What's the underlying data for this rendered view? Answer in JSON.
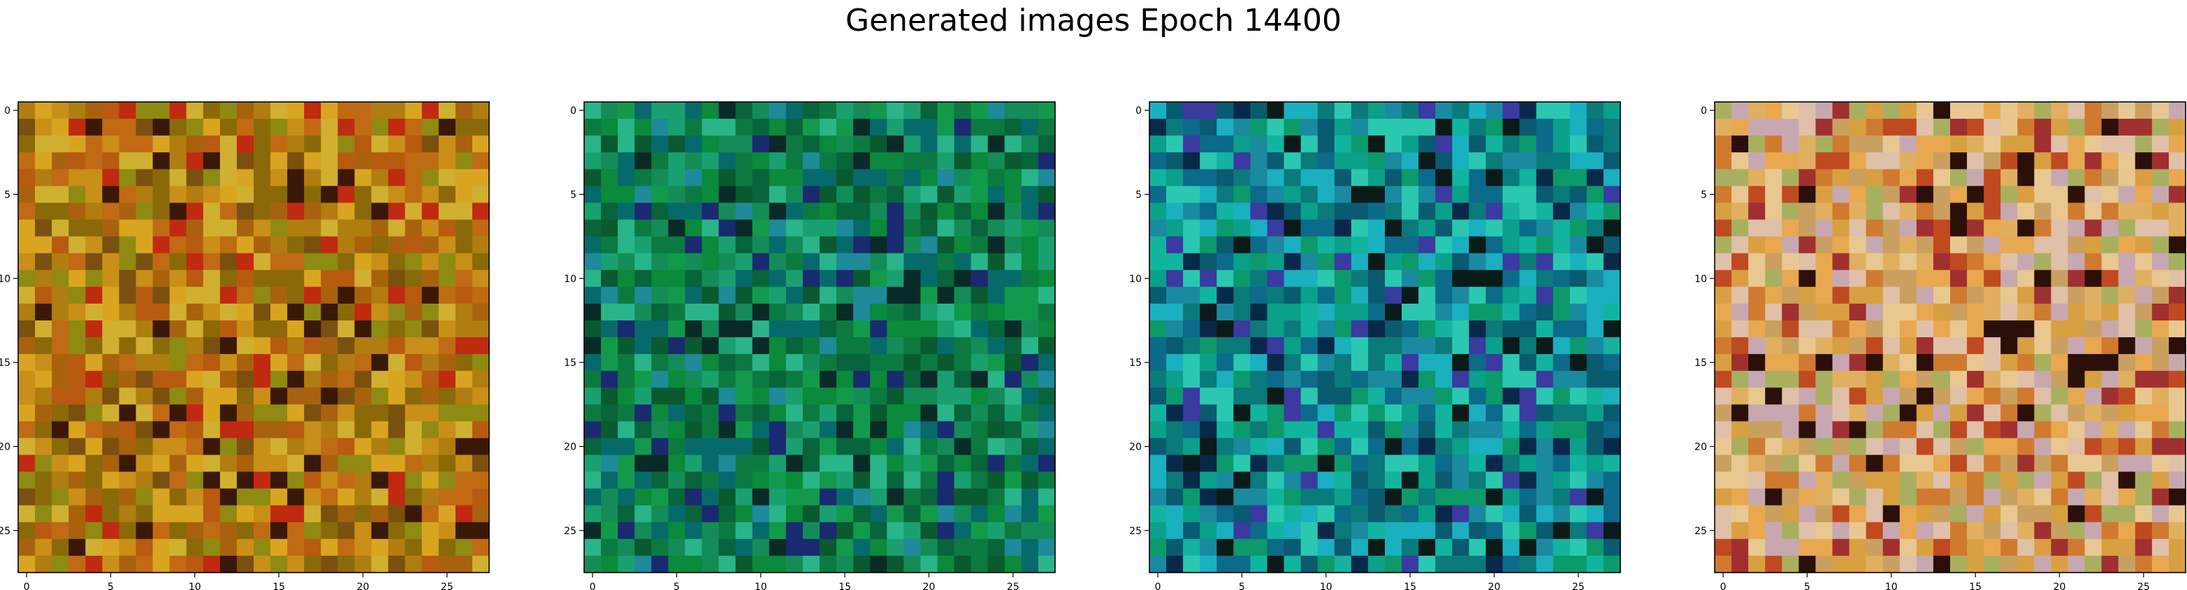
{
  "figure": {
    "title": "Generated images Epoch 14400"
  },
  "chart_data": [
    {
      "type": "heatmap",
      "palette": [
        "#8a6a08",
        "#b07d10",
        "#c98f18",
        "#d9a520",
        "#a8620e",
        "#c06a14",
        "#8f8a12",
        "#b85a10",
        "#d0b030",
        "#7a5010",
        "#c02a10",
        "#3a1808"
      ],
      "grid_size": 28,
      "xlim": [
        0,
        27
      ],
      "ylim": [
        27,
        0
      ],
      "xticks": [
        "0",
        "5",
        "10",
        "15",
        "20",
        "25"
      ],
      "yticks": [
        "0",
        "5",
        "10",
        "15",
        "20",
        "25"
      ]
    },
    {
      "type": "heatmap",
      "palette": [
        "#0a8a3a",
        "#129a4a",
        "#0c7a40",
        "#1aa070",
        "#148c58",
        "#08643a",
        "#0a5a30",
        "#2ab48a",
        "#066a6a",
        "#1e8a9a",
        "#0a2a28",
        "#1a2a70"
      ],
      "grid_size": 28,
      "xlim": [
        0,
        27
      ],
      "ylim": [
        27,
        0
      ],
      "xticks": [
        "0",
        "5",
        "10",
        "15",
        "20",
        "25"
      ],
      "yticks": [
        "0",
        "5",
        "10",
        "15",
        "20",
        "25"
      ]
    },
    {
      "type": "heatmap",
      "palette": [
        "#0aa08a",
        "#12b4a0",
        "#0a7a7a",
        "#1ab0c0",
        "#0c6a8a",
        "#2ac8b0",
        "#0a5a70",
        "#1a8aa0",
        "#0c9a6a",
        "#3a3aa0",
        "#08284a",
        "#0a1a18"
      ],
      "grid_size": 28,
      "xlim": [
        0,
        27
      ],
      "ylim": [
        27,
        0
      ],
      "xticks": [
        "0",
        "5",
        "10",
        "15",
        "20",
        "25"
      ],
      "yticks": [
        "0",
        "5",
        "10",
        "15",
        "20",
        "25"
      ]
    },
    {
      "type": "heatmap",
      "palette": [
        "#e0b060",
        "#d8a040",
        "#e8c890",
        "#caa060",
        "#e8a850",
        "#d07a30",
        "#e0c0a8",
        "#c8a8b0",
        "#a8b060",
        "#c04a20",
        "#a03030",
        "#2a1008"
      ],
      "grid_size": 28,
      "xlim": [
        0,
        27
      ],
      "ylim": [
        27,
        0
      ],
      "xticks": [
        "0",
        "5",
        "10",
        "15",
        "20",
        "25"
      ],
      "yticks": [
        "0",
        "5",
        "10",
        "15",
        "20",
        "25"
      ]
    }
  ]
}
